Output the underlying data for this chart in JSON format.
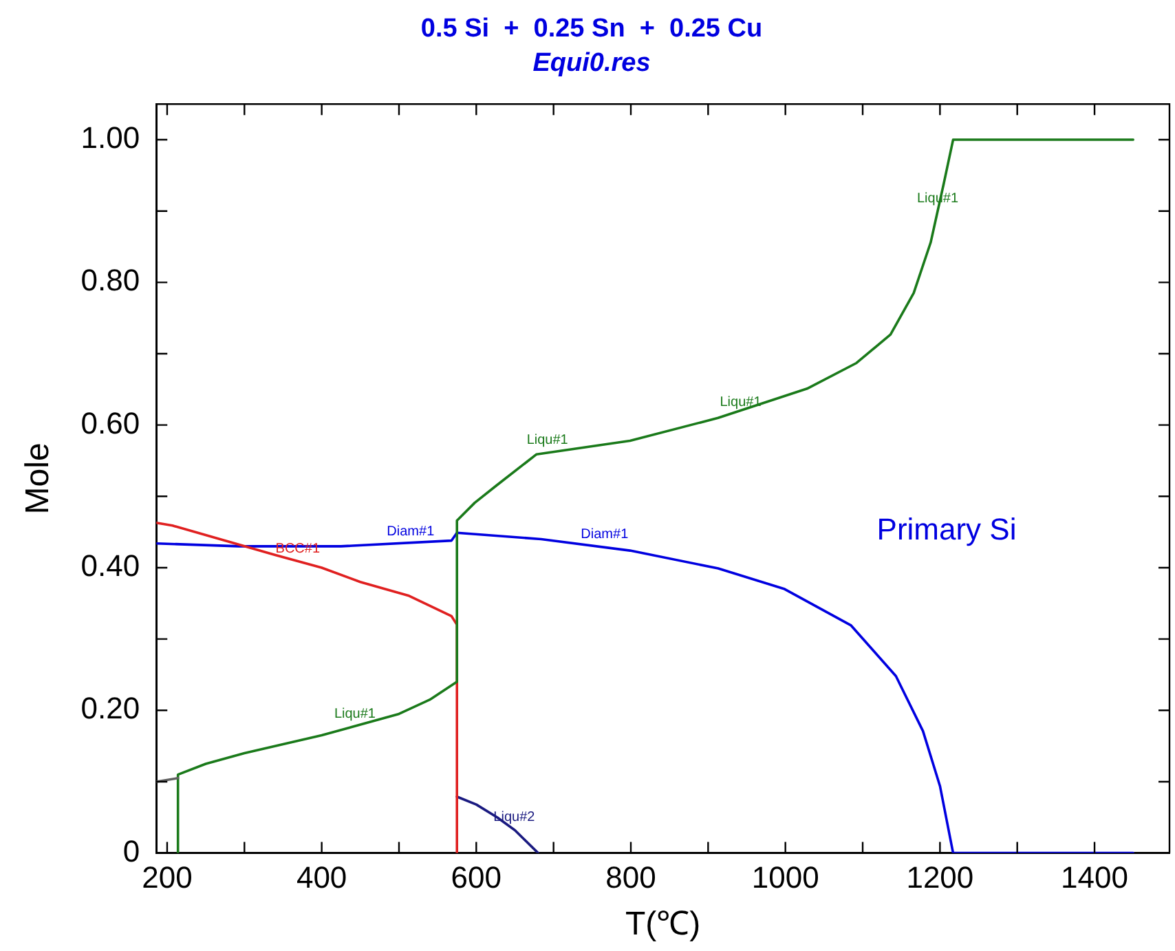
{
  "chart_data": {
    "type": "line",
    "title": "0.5 Si  +  0.25 Sn  +  0.25 Cu",
    "subtitle": "Equi0.res",
    "xlabel": "T(℃)",
    "ylabel": "Mole",
    "xlim": [
      186,
      1497
    ],
    "ylim": [
      0,
      1.05
    ],
    "xticks": [
      200,
      {
        "value": 300,
        "label": null
      },
      400,
      {
        "value": 500,
        "label": null
      },
      600,
      {
        "value": 700,
        "label": null
      },
      800,
      {
        "value": 900,
        "label": null
      },
      1000,
      {
        "value": 1100,
        "label": null
      },
      1200,
      {
        "value": 1300,
        "label": null
      },
      1400
    ],
    "yticks": [
      0,
      {
        "value": 0.1,
        "label": null
      },
      {
        "value": 0.2,
        "label": "0.20"
      },
      {
        "value": 0.3,
        "label": null
      },
      {
        "value": 0.4,
        "label": "0.40"
      },
      {
        "value": 0.5,
        "label": null
      },
      {
        "value": 0.6,
        "label": "0.60"
      },
      {
        "value": 0.7,
        "label": null
      },
      {
        "value": 0.8,
        "label": "0.80"
      },
      {
        "value": 0.9,
        "label": null
      },
      {
        "value": 1.0,
        "label": "1.00"
      }
    ],
    "grid": false,
    "legend": false,
    "marker": "none",
    "line_style": "solid",
    "series": [
      {
        "color": "#606060",
        "x": [
          186,
          214
        ],
        "values": [
          0.1,
          0.105
        ]
      },
      {
        "color": "#1a7a1a",
        "x": [
          214,
          214,
          250,
          300,
          400,
          450,
          500,
          540,
          575,
          575,
          598,
          627,
          678,
          799,
          913,
          1028,
          1092,
          1136,
          1166,
          1188,
          1205,
          1217,
          1450
        ],
        "values": [
          0,
          0.11,
          0.125,
          0.14,
          0.165,
          0.18,
          0.195,
          0.215,
          0.24,
          0.466,
          0.491,
          0.516,
          0.559,
          0.578,
          0.61,
          0.651,
          0.687,
          0.727,
          0.785,
          0.856,
          0.939,
          1.0,
          1.0
        ]
      },
      {
        "color": "#e02020",
        "x": [
          186,
          207,
          339,
          400,
          450,
          512,
          568,
          575,
          575
        ],
        "values": [
          0.463,
          0.459,
          0.418,
          0.4,
          0.38,
          0.361,
          0.332,
          0.32,
          0
        ]
      },
      {
        "color": "#0000e0",
        "x": [
          186,
          293,
          425,
          568,
          575,
          684,
          799,
          913,
          999,
          1085,
          1143,
          1178,
          1200,
          1217,
          1450
        ],
        "values": [
          0.434,
          0.43,
          0.43,
          0.438,
          0.449,
          0.44,
          0.424,
          0.399,
          0.37,
          0.319,
          0.248,
          0.171,
          0.094,
          0,
          0
        ]
      },
      {
        "color": "#1a1a80",
        "x": [
          575,
          600,
          627,
          650,
          680
        ],
        "values": [
          0.079,
          0.068,
          0.05,
          0.032,
          0
        ]
      }
    ],
    "annotations": [
      {
        "text": "Liqu#1",
        "x": 443,
        "y": 0.178
      },
      {
        "text": "Liqu#1",
        "x": 692,
        "y": 0.562
      },
      {
        "text": "Liqu#1",
        "x": 942,
        "y": 0.615
      },
      {
        "text": "Liqu#1",
        "x": 1197,
        "y": 0.9
      },
      {
        "text": "Diam#1",
        "x": 515,
        "y": 0.433
      },
      {
        "text": "Diam#1",
        "x": 766,
        "y": 0.429
      },
      {
        "text": "BCC#1",
        "x": 369,
        "y": 0.409
      },
      {
        "text": "Liqu#2",
        "x": 649,
        "y": 0.033
      },
      "Primary Si"
    ]
  }
}
